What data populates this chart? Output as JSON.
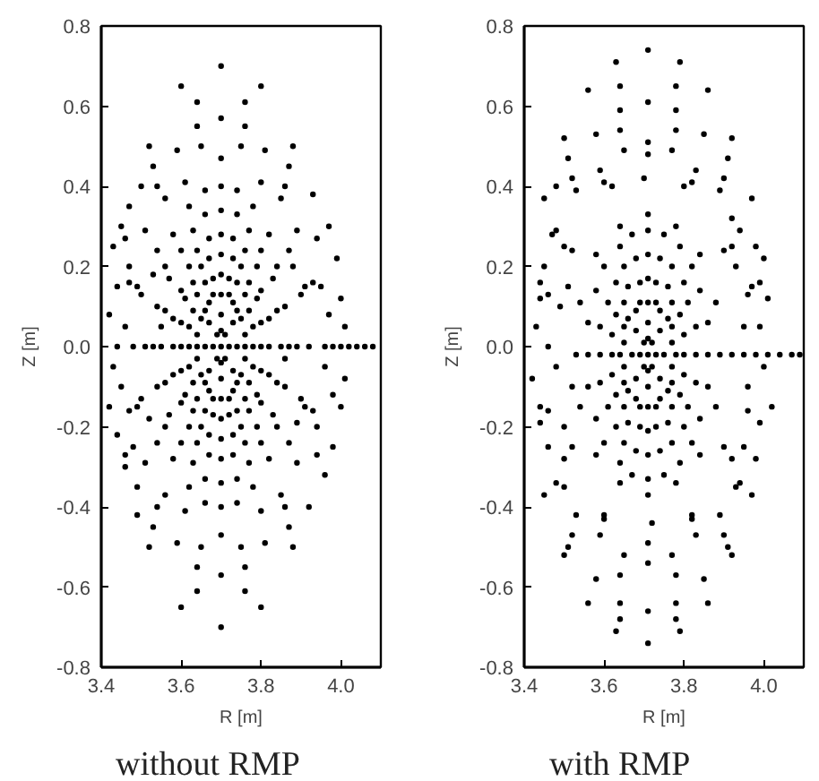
{
  "chart_data": [
    {
      "type": "scatter",
      "title": "without RMP",
      "xlabel": "R [m]",
      "ylabel": "Z [m]",
      "xlim": [
        3.4,
        4.1
      ],
      "ylim": [
        -0.8,
        0.8
      ],
      "xticks": [
        3.4,
        3.6,
        3.8,
        {
          "value": 4,
          "label": "4.0"
        }
      ],
      "yticks": [
        -0.8,
        -0.6,
        -0.4,
        -0.2,
        {
          "value": 0,
          "label": "0.0"
        },
        0.2,
        0.4,
        0.6,
        0.8
      ],
      "marker": "circle",
      "series": [
        {
          "color": "#000000",
          "x": [
            3.7,
            3.72,
            3.71,
            3.7,
            3.69,
            3.68,
            3.69,
            3.7,
            3.71,
            3.74,
            3.73,
            3.7,
            3.67,
            3.66,
            3.67,
            3.7,
            3.73,
            3.76,
            3.75,
            3.73,
            3.7,
            3.67,
            3.65,
            3.64,
            3.65,
            3.67,
            3.7,
            3.73,
            3.75,
            3.78,
            3.76,
            3.72,
            3.68,
            3.64,
            3.62,
            3.62,
            3.64,
            3.68,
            3.72,
            3.76,
            3.78,
            3.8,
            3.79,
            3.75,
            3.7,
            3.65,
            3.61,
            3.6,
            3.61,
            3.65,
            3.7,
            3.75,
            3.79,
            3.82,
            3.79,
            3.73,
            3.67,
            3.62,
            3.58,
            3.58,
            3.62,
            3.67,
            3.73,
            3.79,
            3.82,
            3.85,
            3.83,
            3.77,
            3.7,
            3.63,
            3.57,
            3.55,
            3.57,
            3.63,
            3.7,
            3.77,
            3.83
          ],
          "values": [
            0,
            0,
            0.03,
            0.04,
            0.03,
            0,
            -0.03,
            -0.04,
            -0.03,
            0,
            0.06,
            0.08,
            0.06,
            0,
            -0.06,
            -0.08,
            -0.06,
            0,
            0.07,
            0.11,
            0.13,
            0.11,
            0.07,
            0,
            -0.07,
            -0.11,
            -0.13,
            -0.11,
            -0.07,
            0.05,
            0.13,
            0.17,
            0.17,
            0.13,
            0.05,
            -0.05,
            -0.13,
            -0.17,
            -0.17,
            -0.13,
            -0.05,
            0,
            0.12,
            0.2,
            0.23,
            0.2,
            0.12,
            0,
            -0.12,
            -0.2,
            -0.23,
            -0.2,
            -0.12,
            0.07,
            0.2,
            0.27,
            0.27,
            0.2,
            0.07,
            -0.07,
            -0.2,
            -0.27,
            -0.27,
            -0.2,
            -0.07,
            0,
            0.17,
            0.29,
            0.34,
            0.29,
            0.17,
            0,
            -0.17,
            -0.29,
            -0.34,
            -0.29,
            -0.17
          ]
        },
        {
          "color": "#000000",
          "x": [
            3.86,
            3.82,
            3.74,
            3.66,
            3.58,
            3.54,
            3.54,
            3.58,
            3.66,
            3.74,
            3.82,
            3.86,
            3.89,
            3.87,
            3.8,
            3.7,
            3.61,
            3.54,
            3.51,
            3.54,
            3.61,
            3.7,
            3.8,
            3.87,
            3.9,
            3.85,
            3.75,
            3.65,
            3.56,
            3.5,
            3.5,
            3.56,
            3.65,
            3.75,
            3.85,
            3.9,
            3.92,
            3.89,
            3.81,
            3.7,
            3.59,
            3.51,
            3.48,
            3.51,
            3.59,
            3.7,
            3.81,
            3.89,
            3.93,
            3.87,
            3.76,
            3.64,
            3.53,
            3.47,
            3.47,
            3.53,
            3.64,
            3.76,
            3.87,
            3.93,
            3.96,
            3.94,
            3.88,
            3.8,
            3.7,
            3.6,
            3.52,
            3.46,
            3.44,
            3.46,
            3.52,
            3.6,
            3.7,
            3.8,
            3.88,
            3.94
          ],
          "values": [
            0.1,
            0.28,
            0.39,
            0.39,
            0.28,
            0.1,
            -0.1,
            -0.28,
            -0.39,
            -0.39,
            -0.28,
            -0.1,
            0,
            0.24,
            0.41,
            0.47,
            0.41,
            0.24,
            0,
            -0.24,
            -0.41,
            -0.47,
            -0.41,
            -0.24,
            0.13,
            0.37,
            0.5,
            0.5,
            0.37,
            0.13,
            -0.13,
            -0.37,
            -0.5,
            -0.5,
            -0.37,
            -0.13,
            0,
            0.29,
            0.49,
            0.57,
            0.49,
            0.29,
            0,
            -0.29,
            -0.49,
            -0.57,
            -0.49,
            -0.29,
            0.16,
            0.45,
            0.61,
            0.61,
            0.45,
            0.16,
            -0.16,
            -0.45,
            -0.61,
            -0.61,
            -0.45,
            -0.16,
            0,
            0.27,
            0.5,
            0.65,
            0.7,
            0.65,
            0.5,
            0.27,
            0,
            -0.27,
            -0.5,
            -0.65,
            -0.7,
            -0.65,
            -0.5,
            -0.27
          ]
        },
        {
          "color": "#000000",
          "x": [
            3.43,
            3.45,
            3.44,
            3.42,
            3.43,
            3.42,
            3.44,
            3.46,
            3.47,
            3.46,
            3.45,
            3.48,
            3.47,
            3.49,
            3.5,
            3.49,
            3.97,
            3.99,
            4.0,
            4.01,
            4.01,
            4.0,
            3.98,
            3.96,
            3.95,
            3.96,
            3.94,
            3.93,
            3.92,
            3.97,
            3.98,
            3.53,
            3.52,
            3.88,
            3.89,
            3.55,
            3.86,
            3.98,
            4.0,
            4.02,
            4.04,
            4.06,
            4.08
          ],
          "values": [
            0.25,
            0.3,
            0.15,
            0.08,
            -0.05,
            -0.15,
            -0.22,
            -0.3,
            0.2,
            0.05,
            -0.1,
            -0.25,
            0.35,
            -0.35,
            0.4,
            -0.42,
            0.3,
            0.22,
            0.12,
            0.05,
            -0.08,
            -0.15,
            -0.25,
            -0.32,
            0.15,
            -0.05,
            -0.2,
            0.38,
            -0.4,
            0.08,
            -0.12,
            0.18,
            -0.18,
            0.2,
            -0.19,
            0.05,
            -0.03,
            0,
            0,
            0,
            0,
            0,
            0
          ]
        },
        {
          "color": "#000000",
          "x": [
            3.76,
            3.74,
            3.72,
            3.68,
            3.66,
            3.64,
            3.64,
            3.66,
            3.68,
            3.72,
            3.74,
            3.76,
            3.78,
            3.77,
            3.74,
            3.7,
            3.66,
            3.63,
            3.62,
            3.63,
            3.66,
            3.7,
            3.74,
            3.77,
            3.8,
            3.77,
            3.73,
            3.67,
            3.63,
            3.6,
            3.6,
            3.63,
            3.67,
            3.73,
            3.77,
            3.8,
            3.82,
            3.8,
            3.76,
            3.7,
            3.64,
            3.6,
            3.58,
            3.6,
            3.64,
            3.7,
            3.76,
            3.8,
            3.84,
            3.8,
            3.74,
            3.66,
            3.6,
            3.56,
            3.56,
            3.6,
            3.66,
            3.74,
            3.8,
            3.84,
            3.87,
            3.84,
            3.78,
            3.7,
            3.62,
            3.56,
            3.53,
            3.56,
            3.62,
            3.7,
            3.78,
            3.84,
            3.91,
            3.86,
            3.76,
            3.64,
            3.54,
            3.49,
            3.49,
            3.54,
            3.64,
            3.76,
            3.86,
            3.91
          ],
          "values": [
            0.03,
            0.09,
            0.13,
            0.13,
            0.09,
            0.03,
            -0.03,
            -0.09,
            -0.13,
            -0.13,
            -0.09,
            -0.03,
            0,
            0.09,
            0.16,
            0.18,
            0.16,
            0.09,
            0,
            -0.09,
            -0.16,
            -0.18,
            -0.16,
            -0.09,
            0.06,
            0.16,
            0.22,
            0.22,
            0.16,
            0.06,
            -0.06,
            -0.16,
            -0.22,
            -0.22,
            -0.16,
            -0.06,
            0,
            0.14,
            0.24,
            0.28,
            0.24,
            0.14,
            0,
            -0.14,
            -0.24,
            -0.28,
            -0.24,
            -0.14,
            0.09,
            0.24,
            0.33,
            0.33,
            0.24,
            0.09,
            -0.09,
            -0.24,
            -0.33,
            -0.33,
            -0.24,
            -0.09,
            0,
            0.2,
            0.35,
            0.4,
            0.35,
            0.2,
            0,
            -0.2,
            -0.35,
            -0.4,
            -0.35,
            -0.2,
            0.15,
            0.4,
            0.55,
            0.55,
            0.4,
            0.15,
            -0.15,
            -0.4,
            -0.55,
            -0.55,
            -0.4,
            -0.15
          ]
        }
      ]
    },
    {
      "type": "scatter",
      "title": "with RMP",
      "xlabel": "R [m]",
      "ylabel": "Z [m]",
      "xlim": [
        3.4,
        4.1
      ],
      "ylim": [
        -0.8,
        0.8
      ],
      "xticks": [
        3.4,
        3.6,
        3.8,
        {
          "value": 4,
          "label": "4.0"
        }
      ],
      "yticks": [
        -0.8,
        -0.6,
        -0.4,
        -0.2,
        {
          "value": 0,
          "label": "0.0"
        },
        0.2,
        0.4,
        0.6,
        0.8
      ],
      "marker": "circle",
      "series": [
        {
          "color": "#000000",
          "x": [
            3.71,
            3.73,
            3.72,
            3.71,
            3.7,
            3.69,
            3.7,
            3.71,
            3.72,
            3.75,
            3.74,
            3.71,
            3.68,
            3.67,
            3.68,
            3.71,
            3.74,
            3.78,
            3.77,
            3.74,
            3.71,
            3.68,
            3.65,
            3.64,
            3.65,
            3.68,
            3.71,
            3.74,
            3.77,
            3.8,
            3.77,
            3.73,
            3.69,
            3.65,
            3.62,
            3.62,
            3.65,
            3.69,
            3.73,
            3.77,
            3.8,
            3.83,
            3.81,
            3.77,
            3.71,
            3.65,
            3.61,
            3.59,
            3.61,
            3.65,
            3.71,
            3.77,
            3.81,
            3.86,
            3.82,
            3.75,
            3.67,
            3.6,
            3.56,
            3.56,
            3.6,
            3.67,
            3.75,
            3.82,
            3.86,
            3.89,
            3.88,
            3.84,
            3.78,
            3.71,
            3.64,
            3.58,
            3.54,
            3.53,
            3.54,
            3.58,
            3.64,
            3.71,
            3.78,
            3.84,
            3.88
          ],
          "values": [
            -0.02,
            -0.02,
            0.01,
            0.02,
            0.01,
            -0.02,
            -0.05,
            -0.06,
            -0.05,
            -0.02,
            0.04,
            0.06,
            0.04,
            -0.02,
            -0.08,
            -0.1,
            -0.08,
            -0.02,
            0.05,
            0.09,
            0.11,
            0.09,
            0.05,
            -0.02,
            -0.09,
            -0.13,
            -0.15,
            -0.13,
            -0.09,
            0.03,
            0.11,
            0.16,
            0.16,
            0.11,
            0.03,
            -0.07,
            -0.15,
            -0.2,
            -0.2,
            -0.15,
            -0.07,
            -0.02,
            0.11,
            0.2,
            0.23,
            0.2,
            0.11,
            -0.02,
            -0.15,
            -0.24,
            -0.27,
            -0.24,
            -0.15,
            0.06,
            0.2,
            0.28,
            0.28,
            0.2,
            0.06,
            -0.1,
            -0.24,
            -0.32,
            -0.32,
            -0.24,
            -0.1,
            -0.02,
            0.11,
            0.23,
            0.3,
            0.33,
            0.3,
            0.23,
            0.11,
            -0.02,
            -0.15,
            -0.27,
            -0.34,
            -0.37,
            -0.34,
            -0.27,
            -0.15
          ]
        },
        {
          "color": "#000000",
          "x": [
            3.9,
            3.82,
            3.71,
            3.6,
            3.52,
            3.52,
            3.6,
            3.71,
            3.82,
            3.9,
            3.92,
            3.83,
            3.71,
            3.59,
            3.5,
            3.5,
            3.59,
            3.71,
            3.83,
            3.92,
            3.96,
            3.89,
            3.78,
            3.64,
            3.53,
            3.46,
            3.46,
            3.53,
            3.64,
            3.78,
            3.89,
            3.96,
            3.94,
            3.85,
            3.71,
            3.58,
            3.48,
            3.48,
            3.58,
            3.71,
            3.85,
            3.94,
            3.99,
            3.91,
            3.78,
            3.64,
            3.51,
            3.44,
            3.44,
            3.51,
            3.64,
            3.78,
            3.91,
            3.99,
            3.97,
            3.86,
            3.71,
            3.56,
            3.45,
            3.45,
            3.56,
            3.71,
            3.86,
            3.97
          ],
          "values": [
            0.24,
            0.41,
            0.48,
            0.41,
            0.24,
            -0.25,
            -0.43,
            -0.49,
            -0.43,
            -0.25,
            0.25,
            0.44,
            0.51,
            0.44,
            0.25,
            -0.28,
            -0.47,
            -0.54,
            -0.47,
            -0.28,
            0.13,
            0.39,
            0.54,
            0.54,
            0.39,
            0.13,
            -0.16,
            -0.42,
            -0.57,
            -0.57,
            -0.42,
            -0.16,
            0.29,
            0.53,
            0.61,
            0.53,
            0.29,
            -0.34,
            -0.58,
            -0.66,
            -0.58,
            -0.34,
            0.16,
            0.47,
            0.65,
            0.65,
            0.47,
            0.16,
            -0.19,
            -0.5,
            -0.68,
            -0.68,
            -0.5,
            -0.19,
            0.37,
            0.64,
            0.74,
            0.64,
            0.37,
            -0.37,
            -0.64,
            -0.74,
            -0.64,
            -0.37
          ]
        },
        {
          "color": "#000000",
          "x": [
            3.92,
            3.95,
            3.98,
            4.01,
            4.04,
            4.07,
            4.09,
            3.43,
            3.44,
            3.45,
            3.42,
            3.44,
            3.46,
            3.47,
            3.48,
            3.49,
            3.5,
            3.46,
            3.48,
            3.5,
            3.51,
            3.52,
            3.93,
            3.95,
            3.96,
            3.97,
            3.98,
            3.99,
            4.0,
            4.01,
            4.02,
            3.98,
            3.95,
            3.92,
            3.93,
            4.0,
            3.62,
            3.7,
            3.8,
            3.6,
            3.72,
            3.82
          ],
          "values": [
            -0.02,
            -0.02,
            -0.02,
            -0.02,
            -0.02,
            -0.02,
            -0.02,
            0.05,
            0.12,
            0.2,
            -0.08,
            -0.15,
            -0.25,
            0.28,
            -0.05,
            0.1,
            -0.2,
            0.0,
            0.4,
            -0.35,
            0.15,
            -0.1,
            0.2,
            0.05,
            -0.1,
            0.15,
            0.25,
            0.05,
            -0.05,
            0.12,
            -0.15,
            -0.28,
            -0.25,
            0.32,
            -0.35,
            0.22,
            0.4,
            0.42,
            0.4,
            -0.42,
            -0.44,
            -0.42
          ]
        },
        {
          "color": "#000000",
          "x": [
            3.77,
            3.76,
            3.73,
            3.69,
            3.66,
            3.65,
            3.65,
            3.66,
            3.69,
            3.73,
            3.76,
            3.77,
            3.8,
            3.79,
            3.76,
            3.71,
            3.66,
            3.63,
            3.62,
            3.63,
            3.66,
            3.71,
            3.76,
            3.79,
            3.83,
            3.8,
            3.74,
            3.68,
            3.63,
            3.59,
            3.59,
            3.63,
            3.68,
            3.74,
            3.8,
            3.83,
            3.86,
            3.84,
            3.79,
            3.71,
            3.64,
            3.58,
            3.56,
            3.58,
            3.64,
            3.71,
            3.79,
            3.84,
            3.92,
            3.5,
            3.5,
            3.92,
            3.79,
            3.63,
            3.63,
            3.79,
            3.9,
            3.52,
            3.52,
            3.9,
            3.78,
            3.64,
            3.64,
            3.78,
            3.77,
            3.65,
            3.65,
            3.77
          ],
          "values": [
            0.01,
            0.07,
            0.11,
            0.11,
            0.07,
            0.01,
            -0.05,
            -0.11,
            -0.15,
            -0.15,
            -0.11,
            -0.05,
            -0.02,
            0.08,
            0.15,
            0.17,
            0.15,
            0.08,
            -0.02,
            -0.12,
            -0.19,
            -0.21,
            -0.19,
            -0.12,
            0.05,
            0.16,
            0.22,
            0.22,
            0.16,
            0.05,
            -0.09,
            -0.2,
            -0.26,
            -0.26,
            -0.2,
            -0.09,
            -0.02,
            0.14,
            0.25,
            0.29,
            0.25,
            0.14,
            -0.02,
            -0.18,
            -0.29,
            -0.33,
            -0.29,
            -0.18,
            0.52,
            0.52,
            -0.52,
            -0.52,
            0.71,
            0.71,
            -0.71,
            -0.71,
            0.42,
            0.42,
            -0.47,
            -0.47,
            0.59,
            0.59,
            -0.64,
            -0.64,
            0.49,
            0.49,
            -0.52,
            -0.52
          ]
        }
      ]
    }
  ]
}
